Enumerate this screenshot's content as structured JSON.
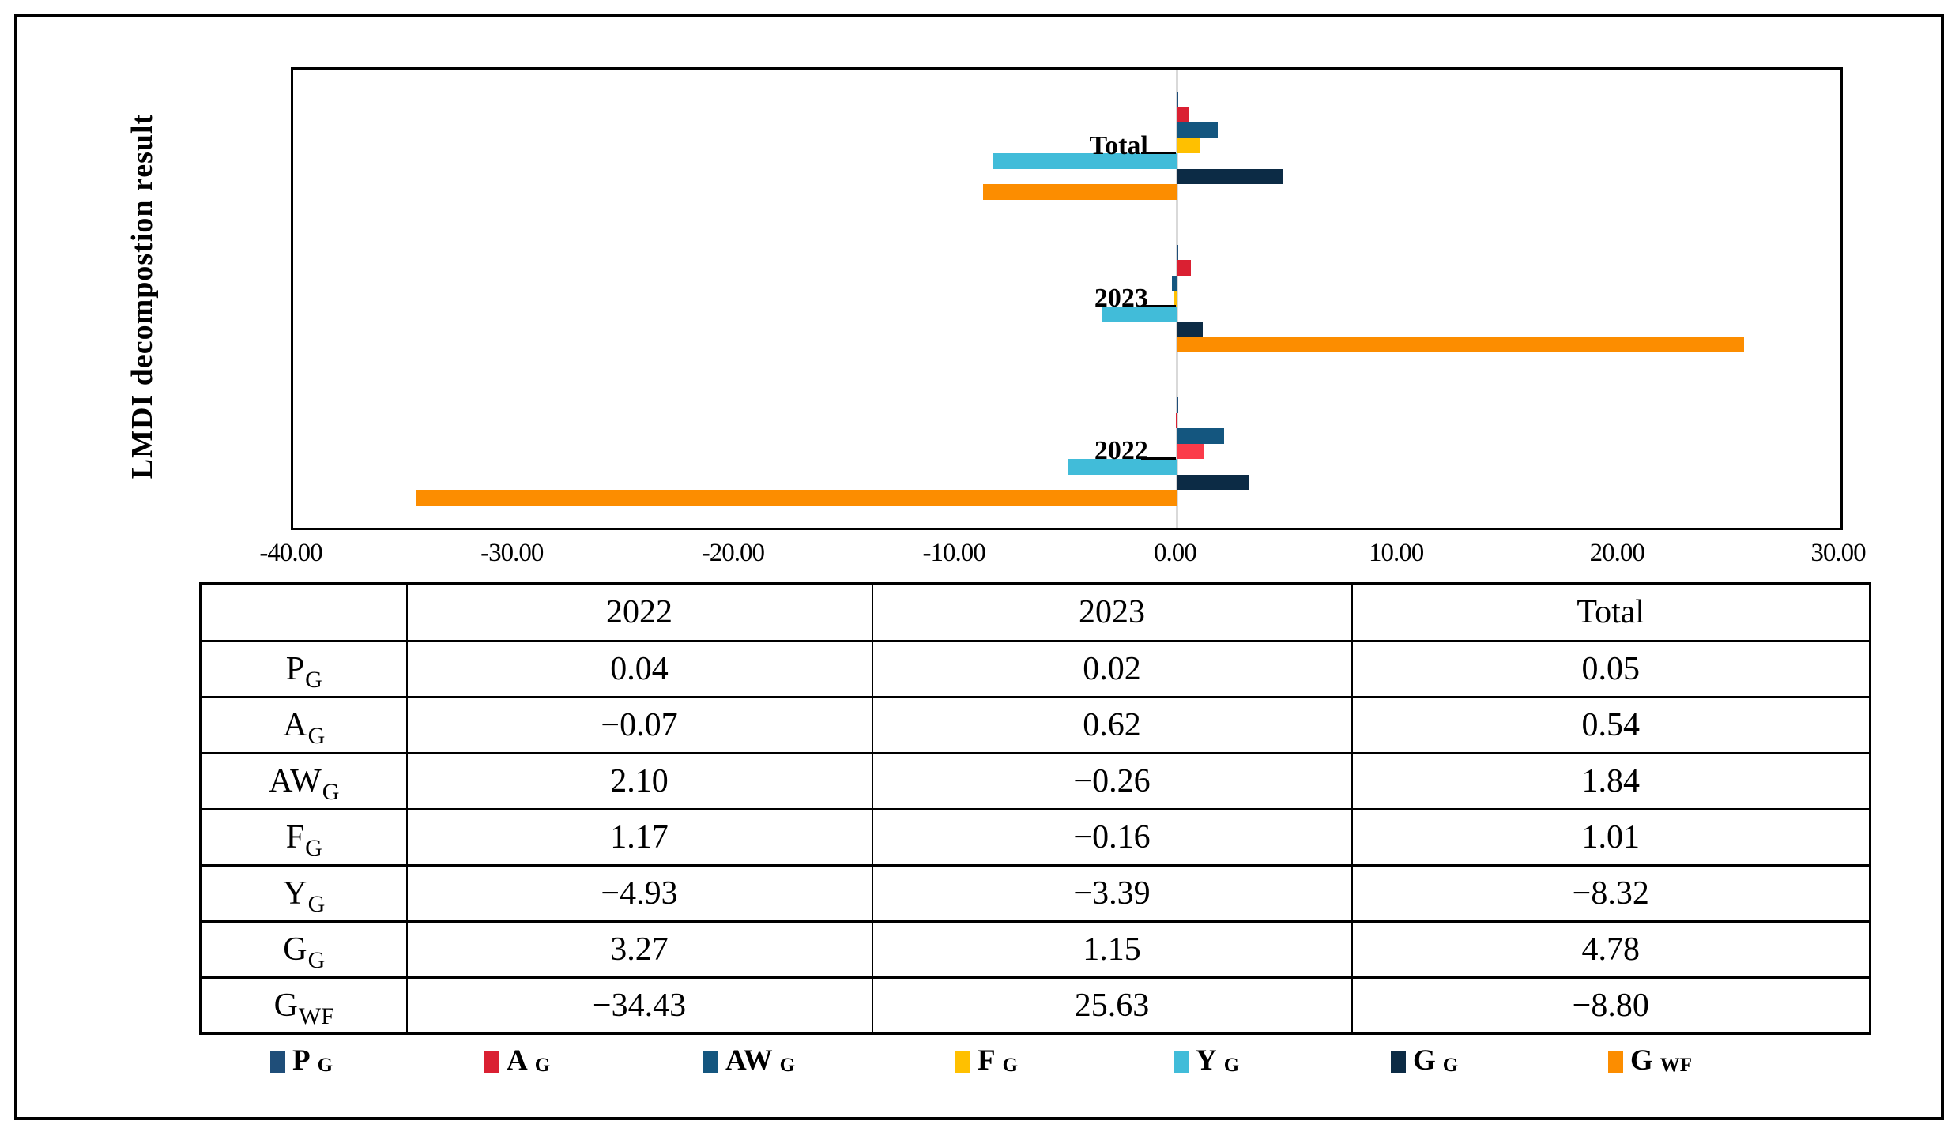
{
  "figure": {
    "y_axis_title": "LMDI decompostion result"
  },
  "chart_data": {
    "type": "bar",
    "orientation": "horizontal",
    "title": "",
    "ylabel": "LMDI decompostion result",
    "xlabel": "",
    "xlim": [
      -40,
      30
    ],
    "x_tick_step": 10,
    "x_tick_labels": [
      "-40.00",
      "-30.00",
      "-20.00",
      "-10.00",
      "0.00",
      "10.00",
      "20.00",
      "30.00"
    ],
    "grid": "off",
    "legend_position": "bottom",
    "zero_axis_line_color": "#d9d9d9",
    "categories": [
      "Total",
      "2023",
      "2022"
    ],
    "series": [
      {
        "name": "P_G",
        "label": "P",
        "sub": "G",
        "color": "#1f4e79",
        "values": [
          0.05,
          0.02,
          0.04
        ]
      },
      {
        "name": "A_G",
        "label": "A",
        "sub": "G",
        "color": "#da2032",
        "values": [
          0.54,
          0.62,
          -0.07
        ]
      },
      {
        "name": "AW_G",
        "label": "AW",
        "sub": "G",
        "color": "#14567f",
        "values": [
          1.84,
          -0.26,
          2.1
        ]
      },
      {
        "name": "F_G",
        "label": "F",
        "sub": "G",
        "color": "#ffc000",
        "values": [
          1.01,
          -0.16,
          1.17
        ]
      },
      {
        "name": "Y_G",
        "label": "Y",
        "sub": "G",
        "color": "#41bcd9",
        "values": [
          -8.32,
          -3.39,
          -4.93
        ]
      },
      {
        "name": "G_G",
        "label": "G",
        "sub": "G",
        "color": "#0c2b45",
        "values": [
          4.78,
          1.15,
          3.27
        ]
      },
      {
        "name": "G_WF",
        "label": "G",
        "sub": "WF",
        "color": "#fc8d00",
        "values": [
          -8.8,
          25.63,
          -34.43
        ]
      }
    ],
    "color_overrides": [
      {
        "category": "2022",
        "series": "F_G",
        "color": "#fb3b4a"
      }
    ]
  },
  "table": {
    "header": [
      "",
      "2022",
      "2023",
      "Total"
    ],
    "rows": [
      {
        "label": "P",
        "sub": "G",
        "values": [
          "0.04",
          "0.02",
          "0.05"
        ]
      },
      {
        "label": "A",
        "sub": "G",
        "values": [
          "−0.07",
          "0.62",
          "0.54"
        ]
      },
      {
        "label": "AW",
        "sub": "G",
        "values": [
          "2.10",
          "−0.26",
          "1.84"
        ]
      },
      {
        "label": "F",
        "sub": "G",
        "values": [
          "1.17",
          "−0.16",
          "1.01"
        ]
      },
      {
        "label": "Y",
        "sub": "G",
        "values": [
          "−4.93",
          "−3.39",
          "−8.32"
        ]
      },
      {
        "label": "G",
        "sub": "G",
        "values": [
          "3.27",
          "1.15",
          "4.78"
        ]
      },
      {
        "label": "G",
        "sub": "WF",
        "values": [
          "−34.43",
          "25.63",
          "−8.80"
        ]
      }
    ]
  }
}
